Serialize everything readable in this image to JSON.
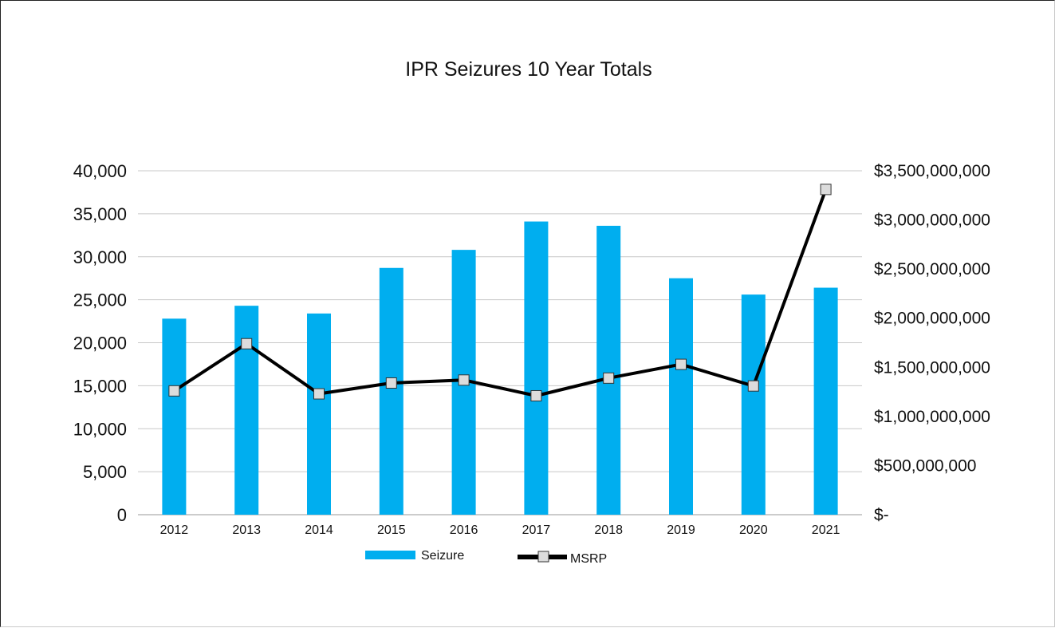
{
  "chart_data": {
    "type": "bar",
    "title": "IPR Seizures 10 Year Totals",
    "categories": [
      "2012",
      "2013",
      "2014",
      "2015",
      "2016",
      "2017",
      "2018",
      "2019",
      "2020",
      "2021"
    ],
    "series": [
      {
        "name": "Seizure",
        "type": "bar",
        "axis": "left",
        "color": "#00aeef",
        "values": [
          22800,
          24300,
          23400,
          28700,
          30800,
          34100,
          33600,
          27500,
          25600,
          26400
        ]
      },
      {
        "name": "MSRP",
        "type": "line",
        "axis": "right",
        "color": "#000000",
        "marker": "square",
        "marker_color": "#dcdcdc",
        "values": [
          1260000000,
          1740000000,
          1230000000,
          1340000000,
          1370000000,
          1210000000,
          1390000000,
          1530000000,
          1310000000,
          3310000000
        ]
      }
    ],
    "y_left": {
      "ylim": [
        0,
        40000
      ],
      "ticks": [
        0,
        5000,
        10000,
        15000,
        20000,
        25000,
        30000,
        35000,
        40000
      ],
      "tick_labels": [
        "0",
        "5,000",
        "10,000",
        "15,000",
        "20,000",
        "25,000",
        "30,000",
        "35,000",
        "40,000"
      ]
    },
    "y_right": {
      "ylim": [
        0,
        3500000000
      ],
      "ticks": [
        0,
        500000000,
        1000000000,
        1500000000,
        2000000000,
        2500000000,
        3000000000,
        3500000000
      ],
      "tick_labels": [
        "$-",
        "$500,000,000",
        "$1,000,000,000",
        "$1,500,000,000",
        "$2,000,000,000",
        "$2,500,000,000",
        "$3,000,000,000",
        "$3,500,000,000"
      ]
    },
    "grid": true,
    "gridline_color": "#c8c8c8",
    "legend": {
      "position": "bottom",
      "items": [
        "Seizure",
        "MSRP"
      ]
    }
  }
}
